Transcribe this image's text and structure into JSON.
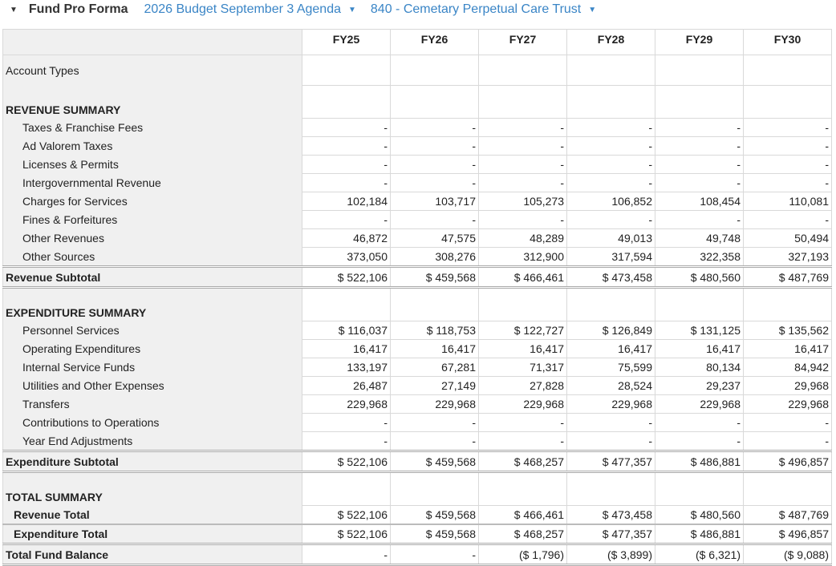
{
  "header": {
    "title": "Fund Pro Forma",
    "budget": "2026 Budget September 3 Agenda",
    "fund": "840 - Cemetary Perpetual Care Trust"
  },
  "columns": [
    "FY25",
    "FY26",
    "FY27",
    "FY28",
    "FY29",
    "FY30"
  ],
  "rows": [
    {
      "type": "first",
      "label": "Account Types",
      "values": [
        "",
        "",
        "",
        "",
        "",
        ""
      ]
    },
    {
      "type": "section",
      "label": "REVENUE SUMMARY",
      "values": [
        "",
        "",
        "",
        "",
        "",
        ""
      ]
    },
    {
      "type": "item",
      "label": "Taxes & Franchise Fees",
      "values": [
        "-",
        "-",
        "-",
        "-",
        "-",
        "-"
      ]
    },
    {
      "type": "item",
      "label": "Ad Valorem Taxes",
      "values": [
        "-",
        "-",
        "-",
        "-",
        "-",
        "-"
      ]
    },
    {
      "type": "item",
      "label": "Licenses & Permits",
      "values": [
        "-",
        "-",
        "-",
        "-",
        "-",
        "-"
      ]
    },
    {
      "type": "item",
      "label": "Intergovernmental Revenue",
      "values": [
        "-",
        "-",
        "-",
        "-",
        "-",
        "-"
      ]
    },
    {
      "type": "item",
      "label": "Charges for Services",
      "values": [
        "102,184",
        "103,717",
        "105,273",
        "106,852",
        "108,454",
        "110,081"
      ]
    },
    {
      "type": "item",
      "label": "Fines & Forfeitures",
      "values": [
        "-",
        "-",
        "-",
        "-",
        "-",
        "-"
      ]
    },
    {
      "type": "item",
      "label": "Other Revenues",
      "values": [
        "46,872",
        "47,575",
        "48,289",
        "49,013",
        "49,748",
        "50,494"
      ]
    },
    {
      "type": "item",
      "label": "Other Sources",
      "values": [
        "373,050",
        "308,276",
        "312,900",
        "317,594",
        "322,358",
        "327,193"
      ]
    },
    {
      "type": "subtotal",
      "label": "Revenue Subtotal",
      "values": [
        "$ 522,106",
        "$ 459,568",
        "$ 466,461",
        "$ 473,458",
        "$ 480,560",
        "$ 487,769"
      ]
    },
    {
      "type": "section",
      "label": "EXPENDITURE SUMMARY",
      "values": [
        "",
        "",
        "",
        "",
        "",
        ""
      ]
    },
    {
      "type": "item",
      "label": "Personnel Services",
      "values": [
        "$ 116,037",
        "$ 118,753",
        "$ 122,727",
        "$ 126,849",
        "$ 131,125",
        "$ 135,562"
      ]
    },
    {
      "type": "item",
      "label": "Operating Expenditures",
      "values": [
        "16,417",
        "16,417",
        "16,417",
        "16,417",
        "16,417",
        "16,417"
      ]
    },
    {
      "type": "item",
      "label": "Internal Service Funds",
      "values": [
        "133,197",
        "67,281",
        "71,317",
        "75,599",
        "80,134",
        "84,942"
      ]
    },
    {
      "type": "item",
      "label": "Utilities and Other Expenses",
      "values": [
        "26,487",
        "27,149",
        "27,828",
        "28,524",
        "29,237",
        "29,968"
      ]
    },
    {
      "type": "item",
      "label": "Transfers",
      "values": [
        "229,968",
        "229,968",
        "229,968",
        "229,968",
        "229,968",
        "229,968"
      ]
    },
    {
      "type": "item",
      "label": "Contributions to Operations",
      "values": [
        "-",
        "-",
        "-",
        "-",
        "-",
        "-"
      ]
    },
    {
      "type": "item",
      "label": "Year End Adjustments",
      "values": [
        "-",
        "-",
        "-",
        "-",
        "-",
        "-"
      ]
    },
    {
      "type": "subtotal",
      "label": "Expenditure Subtotal",
      "values": [
        "$ 522,106",
        "$ 459,568",
        "$ 468,257",
        "$ 477,357",
        "$ 486,881",
        "$ 496,857"
      ]
    },
    {
      "type": "section",
      "label": "TOTAL SUMMARY",
      "values": [
        "",
        "",
        "",
        "",
        "",
        ""
      ]
    },
    {
      "type": "tot",
      "label": "Revenue Total",
      "values": [
        "$ 522,106",
        "$ 459,568",
        "$ 466,461",
        "$ 473,458",
        "$ 480,560",
        "$ 487,769"
      ]
    },
    {
      "type": "tot tot2",
      "label": "Expenditure Total",
      "values": [
        "$ 522,106",
        "$ 459,568",
        "$ 468,257",
        "$ 477,357",
        "$ 486,881",
        "$ 496,857"
      ]
    },
    {
      "type": "subtotal",
      "label": "Total Fund Balance",
      "values": [
        "-",
        "-",
        "($ 1,796)",
        "($ 3,899)",
        "($ 6,321)",
        "($ 9,088)"
      ]
    }
  ]
}
